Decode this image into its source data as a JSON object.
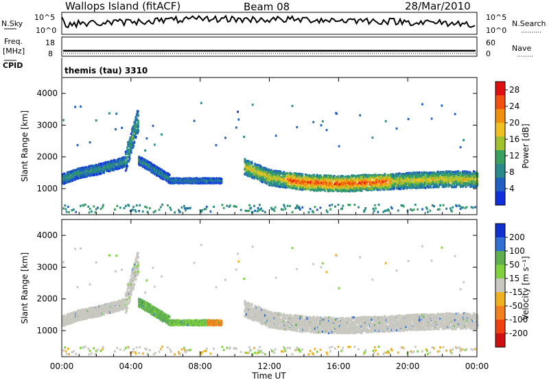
{
  "header": {
    "station": "Wallops Island (fitACF)",
    "beam": "Beam 08",
    "date": "28/Mar/2010"
  },
  "top_panels": {
    "nsky": {
      "label": "N.Sky",
      "left_ticks": [
        "10^5",
        "10^0"
      ],
      "right_ticks": [
        "10^5",
        "10^0"
      ],
      "right_label": "N.Search"
    },
    "freq": {
      "label_line1": "Freq.",
      "label_line2": "[MHz]",
      "left_ticks": [
        "18",
        "8"
      ],
      "right_ticks": [
        "60",
        "0"
      ],
      "right_label": "Nave"
    },
    "cpid": {
      "label": "CPID",
      "program": "themis (tau) 3310"
    }
  },
  "chart_data": [
    {
      "type": "heatmap",
      "name": "power",
      "ylabel": "Slant Range [km]",
      "yticks": [
        "1000",
        "2000",
        "3000",
        "4000"
      ],
      "ylim": [
        180,
        4500
      ],
      "xlim": [
        0,
        24
      ],
      "colorbar": {
        "label": "Power [dB]",
        "ticks": [
          "4",
          "8",
          "12",
          "16",
          "20",
          "24",
          "28"
        ],
        "colors": [
          "#1030e0",
          "#2060c0",
          "#2a8a8a",
          "#3aa060",
          "#a0c030",
          "#f0c020",
          "#f09010",
          "#f05010",
          "#e01010"
        ],
        "range": [
          0,
          30
        ]
      },
      "features": [
        {
          "x": [
            0.0,
            1.0,
            2.0,
            3.0,
            3.6
          ],
          "range": [
            1300,
            1500,
            1600,
            1750,
            1850
          ]
        },
        {
          "x": [
            10.5,
            12.0,
            14.0,
            16.0,
            18.0,
            20.0,
            22.0,
            24.0
          ],
          "range": [
            1700,
            1350,
            1200,
            1150,
            1200,
            1250,
            1300,
            1300
          ]
        }
      ]
    },
    {
      "type": "heatmap",
      "name": "velocity",
      "ylabel": "Slant Range [km]",
      "yticks": [
        "1000",
        "2000",
        "3000",
        "4000"
      ],
      "ylim": [
        180,
        4500
      ],
      "xlim": [
        0,
        24
      ],
      "colorbar": {
        "label": "Velocity [m s⁻¹]",
        "ticks": [
          "200",
          "100",
          "50",
          "15",
          "-15",
          "-50",
          "-100",
          "-200"
        ],
        "colors": [
          "#1030d0",
          "#3070d0",
          "#60b050",
          "#80d040",
          "#c8c8c0",
          "#f0b020",
          "#f08020",
          "#f04010",
          "#d01010"
        ],
        "range": [
          -250,
          250
        ]
      }
    }
  ],
  "x_axis": {
    "ticks": [
      "00:00",
      "04:00",
      "08:00",
      "12:00",
      "16:00",
      "20:00",
      "00:00"
    ],
    "label": "Time UT"
  }
}
